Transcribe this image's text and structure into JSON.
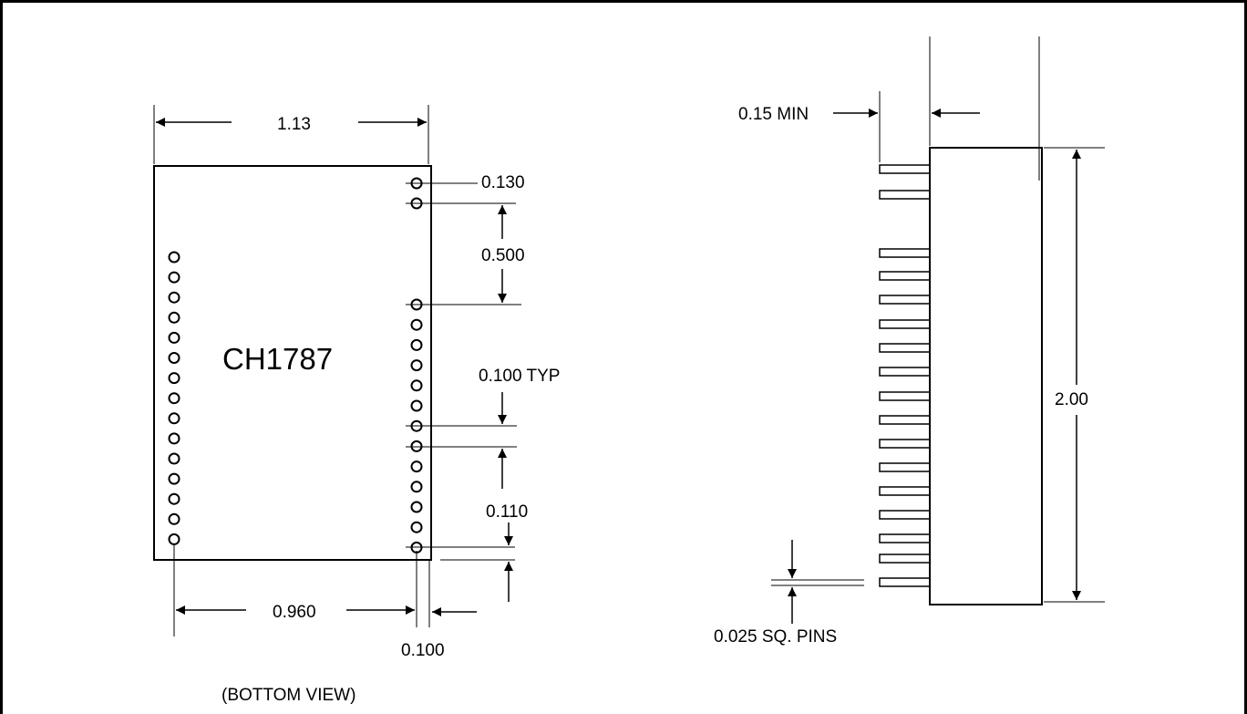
{
  "bottom_view": {
    "part_number": "CH1787",
    "caption": "(BOTTOM VIEW)",
    "dim_width": "1.13",
    "dim_pin_pitch_top": "0.130",
    "dim_gap": "0.500",
    "dim_pitch_typ": "0.100 TYP",
    "dim_row_offset": "0.110",
    "dim_row_spacing": "0.960",
    "dim_edge": "0.100"
  },
  "side_view": {
    "dim_min": "0.15 MIN",
    "dim_height": "2.00",
    "dim_pins": "0.025 SQ. PINS"
  }
}
